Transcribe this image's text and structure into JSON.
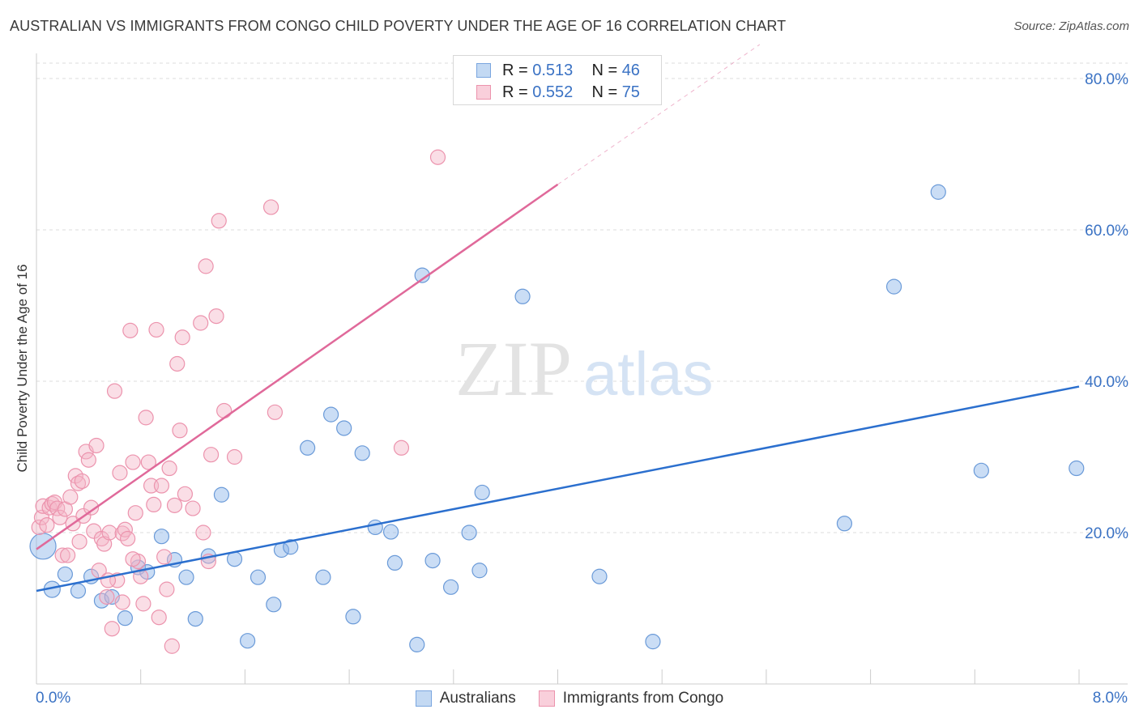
{
  "chart_data": {
    "type": "scatter",
    "title": "AUSTRALIAN VS IMMIGRANTS FROM CONGO CHILD POVERTY UNDER THE AGE OF 16 CORRELATION CHART",
    "source": "Source: ZipAtlas.com",
    "ylabel": "Child Poverty Under the Age of 16",
    "xlabel": "",
    "xlim": [
      0,
      8
    ],
    "ylim": [
      0,
      80
    ],
    "x_tick_labels": {
      "min": "0.0%",
      "max": "8.0%"
    },
    "y_ticks": [
      {
        "value": 20,
        "label": "20.0%"
      },
      {
        "value": 40,
        "label": "40.0%"
      },
      {
        "value": 60,
        "label": "60.0%"
      },
      {
        "value": 80,
        "label": "80.0%"
      }
    ],
    "watermark": {
      "zip": "ZIP",
      "atlas": "atlas"
    },
    "series": [
      {
        "name": "Australians",
        "legend_r_label": "R =",
        "legend_r": "0.513",
        "legend_n_label": "N =",
        "legend_n": "46",
        "color": "#8ab4e8",
        "stroke": "#6a9ad8",
        "line_color": "#2b6fce",
        "trend": {
          "x0": 0,
          "y0": 12.3,
          "x1": 8,
          "y1": 39.3
        },
        "points": [
          [
            0.05,
            18.2,
            16
          ],
          [
            0.12,
            12.5,
            10
          ],
          [
            0.22,
            14.5,
            9
          ],
          [
            0.32,
            12.3,
            9
          ],
          [
            0.42,
            14.2,
            9
          ],
          [
            0.5,
            11.0,
            9
          ],
          [
            0.58,
            11.5,
            9
          ],
          [
            0.68,
            8.7,
            9
          ],
          [
            0.78,
            15.4,
            9
          ],
          [
            0.85,
            14.8,
            9
          ],
          [
            0.96,
            19.5,
            9
          ],
          [
            1.06,
            16.4,
            9
          ],
          [
            1.15,
            14.1,
            9
          ],
          [
            1.22,
            8.6,
            9
          ],
          [
            1.32,
            16.9,
            9
          ],
          [
            1.42,
            25.0,
            9
          ],
          [
            1.52,
            16.5,
            9
          ],
          [
            1.62,
            5.7,
            9
          ],
          [
            1.7,
            14.1,
            9
          ],
          [
            1.82,
            10.5,
            9
          ],
          [
            1.88,
            17.7,
            9
          ],
          [
            1.95,
            18.1,
            9
          ],
          [
            2.08,
            31.2,
            9
          ],
          [
            2.2,
            14.1,
            9
          ],
          [
            2.26,
            35.6,
            9
          ],
          [
            2.36,
            33.8,
            9
          ],
          [
            2.43,
            8.9,
            9
          ],
          [
            2.5,
            30.5,
            9
          ],
          [
            2.6,
            20.7,
            9
          ],
          [
            2.72,
            20.1,
            9
          ],
          [
            2.75,
            16.0,
            9
          ],
          [
            2.92,
            5.2,
            9
          ],
          [
            2.96,
            54.0,
            9
          ],
          [
            3.04,
            16.3,
            9
          ],
          [
            3.18,
            12.8,
            9
          ],
          [
            3.32,
            20.0,
            9
          ],
          [
            3.4,
            15.0,
            9
          ],
          [
            3.42,
            25.3,
            9
          ],
          [
            3.73,
            51.2,
            9
          ],
          [
            4.32,
            14.2,
            9
          ],
          [
            4.73,
            5.6,
            9
          ],
          [
            6.2,
            21.2,
            9
          ],
          [
            6.58,
            52.5,
            9
          ],
          [
            6.92,
            65.0,
            9
          ],
          [
            7.25,
            28.2,
            9
          ],
          [
            7.98,
            28.5,
            9
          ]
        ]
      },
      {
        "name": "Immigrants from Congo",
        "legend_r_label": "R =",
        "legend_r": "0.552",
        "legend_n_label": "N =",
        "legend_n": "75",
        "color": "#f4b6c8",
        "stroke": "#ec93ad",
        "line_color": "#e0699a",
        "trend": {
          "x0": 0,
          "y0": 17.8,
          "x1": 4.0,
          "y1": 66.0
        },
        "trend_dash_end": {
          "x": 5.55,
          "y": 84.5
        },
        "points": [
          [
            0.02,
            20.7,
            9
          ],
          [
            0.04,
            22.0,
            9
          ],
          [
            0.05,
            23.5,
            9
          ],
          [
            0.08,
            21.0,
            9
          ],
          [
            0.1,
            23.3,
            9
          ],
          [
            0.12,
            23.8,
            9
          ],
          [
            0.14,
            24.0,
            9
          ],
          [
            0.16,
            23.2,
            9
          ],
          [
            0.18,
            22.0,
            9
          ],
          [
            0.2,
            17.0,
            9
          ],
          [
            0.22,
            23.1,
            9
          ],
          [
            0.24,
            17.0,
            9
          ],
          [
            0.26,
            24.7,
            9
          ],
          [
            0.28,
            21.2,
            9
          ],
          [
            0.3,
            27.5,
            9
          ],
          [
            0.32,
            26.5,
            9
          ],
          [
            0.33,
            18.8,
            9
          ],
          [
            0.35,
            26.8,
            9
          ],
          [
            0.36,
            22.2,
            9
          ],
          [
            0.38,
            30.7,
            9
          ],
          [
            0.4,
            29.6,
            9
          ],
          [
            0.42,
            23.3,
            9
          ],
          [
            0.44,
            20.2,
            9
          ],
          [
            0.46,
            31.5,
            9
          ],
          [
            0.48,
            15.0,
            9
          ],
          [
            0.5,
            19.2,
            9
          ],
          [
            0.52,
            18.5,
            9
          ],
          [
            0.54,
            11.5,
            9
          ],
          [
            0.56,
            20.0,
            9
          ],
          [
            0.58,
            7.3,
            9
          ],
          [
            0.6,
            38.7,
            9
          ],
          [
            0.62,
            13.7,
            9
          ],
          [
            0.64,
            27.9,
            9
          ],
          [
            0.66,
            19.9,
            9
          ],
          [
            0.68,
            20.4,
            9
          ],
          [
            0.7,
            19.2,
            9
          ],
          [
            0.72,
            46.7,
            9
          ],
          [
            0.74,
            29.3,
            9
          ],
          [
            0.76,
            22.6,
            9
          ],
          [
            0.78,
            16.2,
            9
          ],
          [
            0.8,
            14.2,
            9
          ],
          [
            0.82,
            10.6,
            9
          ],
          [
            0.84,
            35.2,
            9
          ],
          [
            0.86,
            29.3,
            9
          ],
          [
            0.88,
            26.2,
            9
          ],
          [
            0.9,
            23.7,
            9
          ],
          [
            0.92,
            46.8,
            9
          ],
          [
            0.94,
            8.8,
            9
          ],
          [
            0.96,
            26.2,
            9
          ],
          [
            0.98,
            16.8,
            9
          ],
          [
            1.0,
            12.5,
            9
          ],
          [
            1.02,
            28.5,
            9
          ],
          [
            1.04,
            5.0,
            9
          ],
          [
            1.06,
            23.6,
            9
          ],
          [
            1.08,
            42.3,
            9
          ],
          [
            1.1,
            33.5,
            9
          ],
          [
            1.12,
            45.8,
            9
          ],
          [
            1.14,
            25.1,
            9
          ],
          [
            1.2,
            23.2,
            9
          ],
          [
            1.26,
            47.7,
            9
          ],
          [
            1.28,
            20.0,
            9
          ],
          [
            1.3,
            55.2,
            9
          ],
          [
            1.32,
            16.2,
            9
          ],
          [
            1.34,
            30.3,
            9
          ],
          [
            1.38,
            48.6,
            9
          ],
          [
            1.4,
            61.2,
            9
          ],
          [
            1.44,
            36.1,
            9
          ],
          [
            1.52,
            30.0,
            9
          ],
          [
            1.8,
            63.0,
            9
          ],
          [
            1.83,
            35.9,
            9
          ],
          [
            2.8,
            31.2,
            9
          ],
          [
            3.08,
            69.6,
            9
          ],
          [
            0.55,
            13.7,
            9
          ],
          [
            0.66,
            10.8,
            9
          ],
          [
            0.74,
            16.5,
            9
          ]
        ]
      }
    ]
  }
}
